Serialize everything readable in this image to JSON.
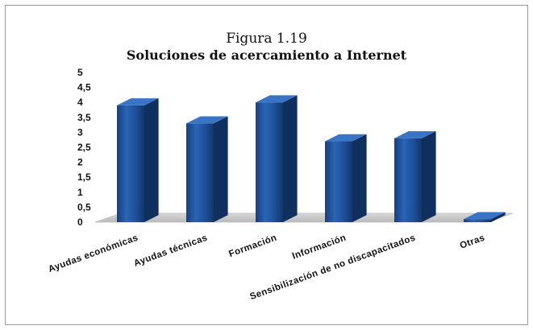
{
  "chart_data": {
    "type": "bar",
    "title": "Figura 1.19",
    "subtitle": "Soluciones de acercamiento a Internet",
    "categories": [
      "Ayudas económicas",
      "Ayudas técnicas",
      "Formación",
      "Información",
      "Sensibilización de no discapacitados",
      "Otras"
    ],
    "values": [
      3.9,
      3.3,
      4.0,
      2.7,
      2.8,
      0.1
    ],
    "ylim": [
      0,
      5
    ],
    "yticks": [
      "0",
      "0,5",
      "1",
      "1,5",
      "2",
      "2,5",
      "3",
      "3,5",
      "4",
      "4,5",
      "5"
    ],
    "grid": false,
    "legend": "none",
    "bar_color": "#1f4f99"
  }
}
